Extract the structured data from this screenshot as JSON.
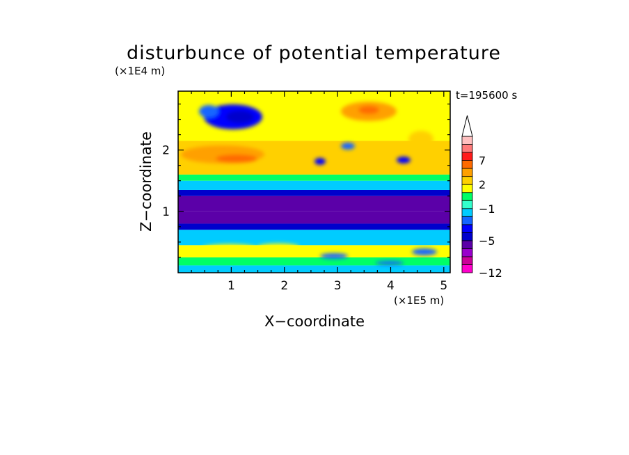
{
  "chart_data": {
    "type": "heatmap",
    "title": "disturbunce of potential temperature",
    "time_label": "t=195600 s",
    "xlabel": "X−coordinate",
    "ylabel": "Z−coordinate",
    "x_scale_label": "(×1E5 m)",
    "y_scale_label": "(×1E4 m)",
    "xlim": [
      0,
      5.12
    ],
    "ylim": [
      0,
      2.96
    ],
    "x_ticks": [
      {
        "value": 1,
        "label": "1"
      },
      {
        "value": 2,
        "label": "2"
      },
      {
        "value": 3,
        "label": "3"
      },
      {
        "value": 4,
        "label": "4"
      },
      {
        "value": 5,
        "label": "5"
      }
    ],
    "y_ticks": [
      {
        "value": 1,
        "label": "1"
      },
      {
        "value": 2,
        "label": "2"
      }
    ],
    "colorbar": {
      "levels": [
        -12,
        -10,
        -8,
        -6,
        -5,
        -4,
        -3,
        -2,
        -1,
        0,
        1,
        2,
        3,
        5,
        7,
        9,
        12
      ],
      "colors": [
        "#ff00cc",
        "#cc0099",
        "#9900cc",
        "#5b00a8",
        "#0000cc",
        "#0000ff",
        "#1466ff",
        "#00ccff",
        "#33ffcc",
        "#00ff66",
        "#ffff00",
        "#ffd000",
        "#ffa000",
        "#ff6a00",
        "#ff1a1a",
        "#ff7a7a",
        "#ffc0c0"
      ],
      "extend": "max",
      "labels": [
        {
          "value": 7,
          "label": "7"
        },
        {
          "value": 2,
          "label": "2"
        },
        {
          "value": -1,
          "label": "−1"
        },
        {
          "value": -5,
          "label": "−5"
        },
        {
          "value": -12,
          "label": "−12"
        }
      ]
    },
    "field_bands": [
      {
        "z_from": 0.0,
        "z_to": 0.12,
        "value": -1.5
      },
      {
        "z_from": 0.12,
        "z_to": 0.25,
        "value": 0.5
      },
      {
        "z_from": 0.25,
        "z_to": 0.45,
        "value": 1.5
      },
      {
        "z_from": 0.45,
        "z_to": 0.7,
        "value": -2.0
      },
      {
        "z_from": 0.7,
        "z_to": 0.8,
        "value": -4.5
      },
      {
        "z_from": 0.8,
        "z_to": 1.0,
        "value": -6.0
      },
      {
        "z_from": 1.0,
        "z_to": 1.25,
        "value": -6.0
      },
      {
        "z_from": 1.25,
        "z_to": 1.35,
        "value": -4.5
      },
      {
        "z_from": 1.35,
        "z_to": 1.5,
        "value": -1.5
      },
      {
        "z_from": 1.5,
        "z_to": 1.6,
        "value": 0.5
      },
      {
        "z_from": 1.6,
        "z_to": 2.15,
        "value": 2.5
      },
      {
        "z_from": 2.15,
        "z_to": 2.96,
        "value": 1.5
      }
    ]
  }
}
